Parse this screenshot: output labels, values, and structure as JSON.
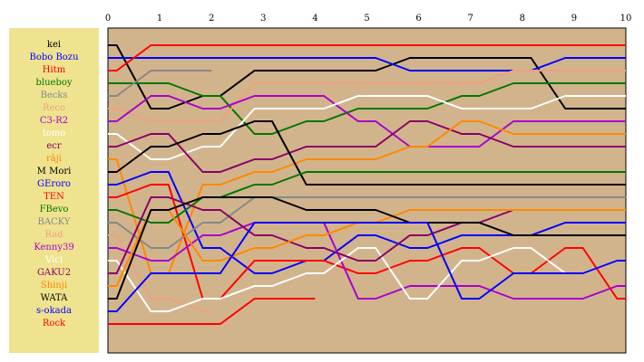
{
  "chart_data": {
    "type": "line",
    "title": "",
    "xlabel": "",
    "ylabel": "",
    "x": [
      0,
      1,
      2,
      3,
      4,
      5,
      6,
      7,
      8,
      9,
      10
    ],
    "x_tick_labels": [
      "0",
      "1",
      "2",
      "3",
      "4",
      "5",
      "6",
      "7",
      "8",
      "9",
      "10"
    ],
    "xlim": [
      0,
      10
    ],
    "y_scale": "rank (1 = top)",
    "ylim": [
      23,
      1
    ],
    "grid": false,
    "legend_position": "left",
    "plot_background": "#d2b48c",
    "legend_background": "#efe38f",
    "series": [
      {
        "name": "kei",
        "color": "#000000",
        "values": [
          1,
          6,
          5,
          3,
          3,
          3,
          2,
          2,
          2,
          6,
          6
        ]
      },
      {
        "name": "Bobo Bozu",
        "color": "#0000ff",
        "values": [
          2,
          2,
          2,
          2,
          2,
          2,
          3,
          3,
          3,
          2,
          2
        ]
      },
      {
        "name": "Hitm",
        "color": "#ff0000",
        "values": [
          3,
          1,
          1,
          1,
          1,
          1,
          1,
          1,
          1,
          1,
          1
        ]
      },
      {
        "name": "blueboy",
        "color": "#007700",
        "values": [
          4,
          4,
          5,
          8,
          7,
          6,
          6,
          5,
          4,
          4,
          4
        ]
      },
      {
        "name": "Becks",
        "color": "#888888",
        "values": [
          5,
          3,
          3,
          null,
          null,
          null,
          null,
          null,
          null,
          null,
          null
        ]
      },
      {
        "name": "Reco",
        "color": "#f0a080",
        "values": [
          6,
          7,
          7,
          4,
          4,
          4,
          4,
          4,
          3,
          3,
          3
        ]
      },
      {
        "name": "C3-R2",
        "color": "#aa00cc",
        "values": [
          7,
          5,
          6,
          5,
          5,
          7,
          9,
          9,
          7,
          7,
          7
        ]
      },
      {
        "name": "tomo",
        "color": "#ffffff",
        "values": [
          8,
          10,
          9,
          6,
          6,
          5,
          5,
          6,
          6,
          5,
          5
        ]
      },
      {
        "name": "ecr",
        "color": "#880066",
        "values": [
          9,
          8,
          11,
          10,
          9,
          9,
          7,
          8,
          9,
          9,
          9
        ]
      },
      {
        "name": "rāji",
        "color": "#ff8800",
        "values": [
          10,
          19,
          12,
          11,
          10,
          10,
          9,
          7,
          8,
          8,
          8
        ]
      },
      {
        "name": "M Mori",
        "color": "#000000",
        "values": [
          11,
          9,
          8,
          7,
          12,
          12,
          12,
          12,
          12,
          12,
          12
        ]
      },
      {
        "name": "GEroro",
        "color": "#0000ff",
        "values": [
          12,
          11,
          17,
          19,
          18,
          16,
          17,
          16,
          16,
          15,
          15
        ]
      },
      {
        "name": "TEN",
        "color": "#ff0000",
        "values": [
          13,
          12,
          21,
          18,
          18,
          19,
          18,
          17,
          19,
          17,
          21
        ]
      },
      {
        "name": "FBevo",
        "color": "#007700",
        "values": [
          14,
          15,
          13,
          12,
          11,
          11,
          11,
          11,
          11,
          11,
          11
        ]
      },
      {
        "name": "BACKY",
        "color": "#888888",
        "values": [
          15,
          17,
          15,
          13,
          13,
          13,
          13,
          13,
          13,
          13,
          13
        ]
      },
      {
        "name": "Rad",
        "color": "#f0a080",
        "values": [
          16,
          21,
          22,
          null,
          null,
          null,
          null,
          null,
          null,
          null,
          null
        ]
      },
      {
        "name": "Kenny39",
        "color": "#aa00cc",
        "values": [
          17,
          18,
          16,
          15,
          15,
          21,
          20,
          20,
          21,
          21,
          20
        ]
      },
      {
        "name": "Vici",
        "color": "#ffffff",
        "values": [
          18,
          22,
          21,
          20,
          19,
          17,
          21,
          18,
          17,
          19,
          18
        ]
      },
      {
        "name": "GAKU2",
        "color": "#880066",
        "values": [
          19,
          13,
          14,
          16,
          17,
          18,
          16,
          15,
          14,
          14,
          14
        ]
      },
      {
        "name": "Shinji",
        "color": "#ff8800",
        "values": [
          20,
          14,
          18,
          17,
          16,
          15,
          14,
          14,
          14,
          14,
          14
        ]
      },
      {
        "name": "WATA",
        "color": "#000000",
        "values": [
          21,
          14,
          13,
          13,
          14,
          14,
          15,
          15,
          16,
          16,
          16
        ]
      },
      {
        "name": "s-okada",
        "color": "#0000ff",
        "values": [
          22,
          19,
          19,
          15,
          15,
          15,
          15,
          21,
          19,
          19,
          18
        ]
      },
      {
        "name": "Rock",
        "color": "#ff0000",
        "values": [
          23,
          23,
          23,
          21,
          21,
          null,
          null,
          null,
          null,
          null,
          null
        ]
      }
    ]
  }
}
